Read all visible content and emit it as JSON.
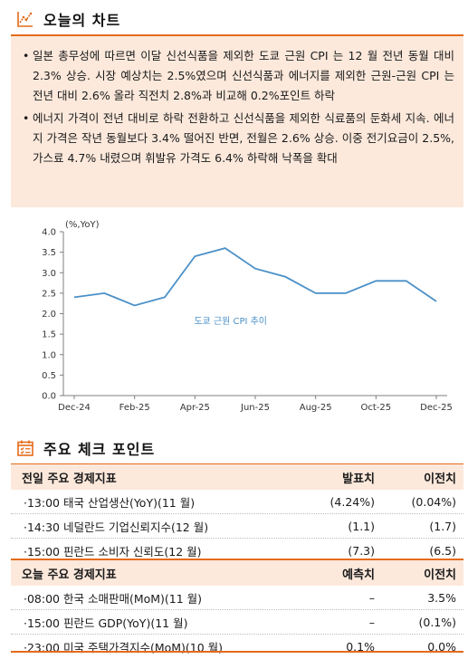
{
  "sections": {
    "chart_title": "오늘의 차트",
    "checkpoints_title": "주요 체크 포인트"
  },
  "summary": {
    "bullets": [
      "일본 총무성에 따르면 이달 신선식품을 제외한 도쿄 근원 CPI 는 12 월 전년 동월 대비 2.3% 상승. 시장 예상치는 2.5%였으며 신선식품과 에너지를 제외한 근원-근원 CPI 는 전년 대비 2.6% 올라 직전치 2.8%과 비교해 0.2%포인트 하락",
      "에너지 가격이 전년 대비로 하락 전환하고 신선식품을 제외한 식료품의 둔화세 지속. 에너지 가격은 작년 동월보다 3.4% 떨어진 반면, 전월은 2.6% 상승. 이중 전기요금이 2.5%, 가스료 4.7% 내렸으며 휘발유 가격도 6.4% 하락해 낙폭을 확대"
    ]
  },
  "chart_data": {
    "type": "line",
    "ylabel": "(%,YoY)",
    "ylim": [
      0,
      4.0
    ],
    "yticks": [
      "0.0",
      "0.5",
      "1.0",
      "1.5",
      "2.0",
      "2.5",
      "3.0",
      "3.5",
      "4.0"
    ],
    "x": [
      "Dec-24",
      "Jan-25",
      "Feb-25",
      "Mar-25",
      "Apr-25",
      "May-25",
      "Jun-25",
      "Jul-25",
      "Aug-25",
      "Sep-25",
      "Oct-25",
      "Nov-25",
      "Dec-25"
    ],
    "xtick_labels": [
      "Dec-24",
      "Feb-25",
      "Apr-25",
      "Jun-25",
      "Aug-25",
      "Oct-25",
      "Dec-25"
    ],
    "series": [
      {
        "name": "도쿄 근원 CPI 추이",
        "values": [
          2.4,
          2.5,
          2.2,
          2.4,
          3.4,
          3.6,
          3.1,
          2.9,
          2.5,
          2.5,
          2.8,
          2.8,
          2.3
        ],
        "color": "#4a90c8"
      }
    ],
    "grid": false,
    "legend": "inline-annotation"
  },
  "tables": {
    "previous": {
      "headers": [
        "전일 주요 경제지표",
        "발표치",
        "이전치"
      ],
      "rows": [
        [
          "13:00 태국 산업생산(YoY)(11 월)",
          "(4.24%)",
          "(0.04%)"
        ],
        [
          "14:30 네덜란드 기업신뢰지수(12 월)",
          "(1.1)",
          "(1.7)"
        ],
        [
          "15:00 핀란드 소비자 신뢰도(12 월)",
          "(7.3)",
          "(6.5)"
        ]
      ]
    },
    "today": {
      "headers": [
        "오늘 주요 경제지표",
        "예측치",
        "이전치"
      ],
      "rows": [
        [
          "08:00 한국 소매판매(MoM)(11 월)",
          "–",
          "3.5%"
        ],
        [
          "15:00 핀란드 GDP(YoY)(11 월)",
          "–",
          "(0.1%)"
        ],
        [
          "23:00 미국 주택가격지수(MoM)(10 월)",
          "0.1%",
          "0.0%"
        ]
      ]
    }
  },
  "colors": {
    "accent": "#e46b1a",
    "panel": "#fce9dc",
    "line": "#4a90c8"
  },
  "icons": {
    "chart": "line-chart-icon",
    "calendar": "calendar-checklist-icon"
  }
}
